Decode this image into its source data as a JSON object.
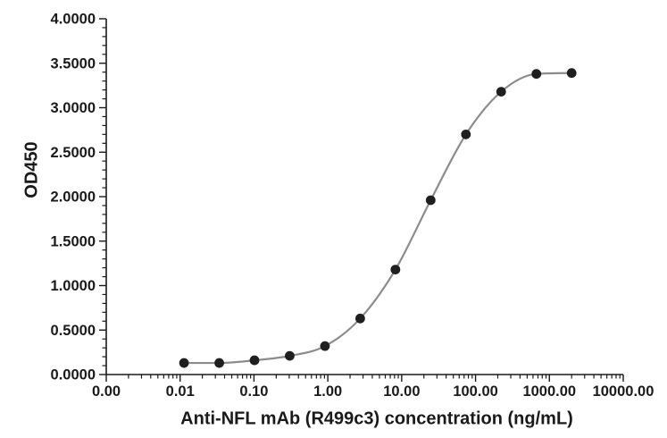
{
  "chart_data": {
    "type": "scatter",
    "title": "",
    "xlabel": "Anti-NFL mAb (R499c3) concentration (ng/mL)",
    "ylabel": "OD450",
    "x_scale": "log",
    "xlim": [
      0.001,
      10000
    ],
    "ylim": [
      0,
      4
    ],
    "y_major_step": 0.5,
    "y_minor_step": 0.1,
    "grid": false,
    "legend_position": "none",
    "x_tick_labels": [
      "0.00",
      "0.01",
      "0.10",
      "1.00",
      "10.00",
      "100.00",
      "1000.00",
      "10000.00"
    ],
    "y_tick_labels": [
      "0.0000",
      "0.5000",
      "1.0000",
      "1.5000",
      "2.0000",
      "2.5000",
      "3.0000",
      "3.5000",
      "4.0000"
    ],
    "series": [
      {
        "name": "Anti-NFL mAb (R499c3)",
        "x": [
          0.0113,
          0.0339,
          0.1016,
          0.3048,
          0.9145,
          2.7435,
          8.2305,
          24.6914,
          74.0741,
          222.2222,
          666.6667,
          2000
        ],
        "y": [
          0.13,
          0.13,
          0.16,
          0.21,
          0.32,
          0.63,
          1.18,
          1.96,
          2.7,
          3.18,
          3.38,
          3.39
        ]
      }
    ],
    "colors": {
      "marker": "#1f1f1f",
      "line": "#8c8c8c",
      "axis": "#1a1a1a",
      "background": "#ffffff"
    }
  }
}
